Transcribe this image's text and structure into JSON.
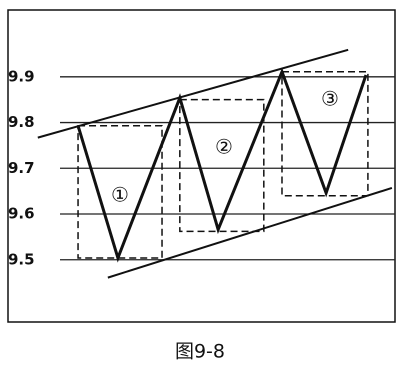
{
  "chart_data": {
    "type": "line",
    "caption": "图9-8",
    "x": [
      18.1,
      28.4,
      44.4,
      54.3,
      70.8,
      82.2,
      92.5
    ],
    "series": [
      {
        "color": "#111111",
        "values": [
          9.793,
          9.504,
          9.854,
          9.566,
          9.911,
          9.646,
          9.904
        ]
      }
    ],
    "channel_lines": [
      {
        "x": [
          7.7,
          87.9
        ],
        "values": [
          9.767,
          9.959
        ]
      },
      {
        "x": [
          25.8,
          99.2
        ],
        "values": [
          9.461,
          9.657
        ]
      }
    ],
    "boxes": [
      {
        "x": [
          18.1,
          39.8
        ],
        "values": [
          9.504,
          9.793
        ]
      },
      {
        "x": [
          44.4,
          66.1
        ],
        "values": [
          9.562,
          9.85
        ]
      },
      {
        "x": [
          70.8,
          93.0
        ],
        "values": [
          9.64,
          9.911
        ]
      }
    ],
    "annotations": [
      "①",
      "②",
      "③"
    ],
    "xlim": [
      0,
      100
    ],
    "ylim": [
      9.364,
      10.046
    ],
    "yticks": [
      9.5,
      9.6,
      9.7,
      9.8,
      9.9
    ],
    "grid": true
  }
}
